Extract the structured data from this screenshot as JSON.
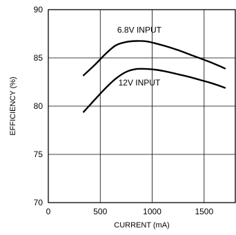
{
  "chart_data": {
    "type": "line",
    "title": "",
    "xlabel": "CURRENT (mA)",
    "ylabel": "EFFICIENCY (%)",
    "xlim": [
      0,
      1900
    ],
    "ylim": [
      70,
      90
    ],
    "xticks": [
      0,
      500,
      1000,
      1500
    ],
    "yticks": [
      70,
      75,
      80,
      85,
      90
    ],
    "grid": true,
    "legend": "none",
    "series": [
      {
        "name": "6.8V INPUT",
        "color": "#000000",
        "x": [
          340,
          450,
          550,
          650,
          750,
          850,
          950,
          1050,
          1150,
          1250,
          1350,
          1450,
          1550,
          1650,
          1700
        ],
        "y": [
          83.2,
          84.3,
          85.4,
          86.3,
          86.65,
          86.75,
          86.7,
          86.45,
          86.15,
          85.8,
          85.4,
          85.0,
          84.6,
          84.15,
          83.9
        ]
      },
      {
        "name": "12V INPUT",
        "color": "#000000",
        "x": [
          340,
          450,
          550,
          650,
          750,
          850,
          950,
          1050,
          1150,
          1250,
          1350,
          1450,
          1550,
          1650,
          1700
        ],
        "y": [
          79.4,
          80.7,
          81.85,
          82.85,
          83.55,
          83.85,
          83.85,
          83.75,
          83.55,
          83.3,
          83.05,
          82.75,
          82.45,
          82.1,
          81.9
        ]
      }
    ]
  }
}
